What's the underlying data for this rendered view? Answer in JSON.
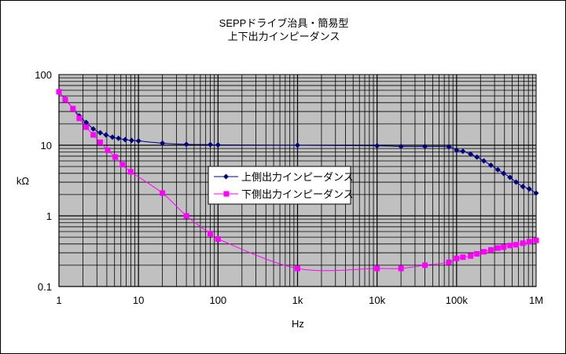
{
  "chart_data": {
    "type": "line",
    "title": "SEPPドライブ治具・簡易型",
    "subtitle": "上下出力インピーダンス",
    "xlabel": "Hz",
    "ylabel": "kΩ",
    "xscale": "log",
    "yscale": "log",
    "xlim": [
      1,
      1000000
    ],
    "ylim": [
      0.1,
      100
    ],
    "x_ticks": [
      {
        "value": 1,
        "label": "1"
      },
      {
        "value": 10,
        "label": "10"
      },
      {
        "value": 100,
        "label": "100"
      },
      {
        "value": 1000,
        "label": "1k"
      },
      {
        "value": 10000,
        "label": "10k"
      },
      {
        "value": 100000,
        "label": "100k"
      },
      {
        "value": 1000000,
        "label": "1M"
      }
    ],
    "y_ticks": [
      {
        "value": 0.1,
        "label": "0.1"
      },
      {
        "value": 1,
        "label": "1"
      },
      {
        "value": 10,
        "label": "10"
      },
      {
        "value": 100,
        "label": "100"
      }
    ],
    "grid": true,
    "legend_position": "center-right",
    "plot_background": "#c0c0c0",
    "series": [
      {
        "name": "上側出力インピーダンス",
        "color": "#000080",
        "marker": "diamond",
        "points": [
          [
            1,
            56
          ],
          [
            1.2,
            45
          ],
          [
            1.5,
            33
          ],
          [
            1.8,
            26
          ],
          [
            2.2,
            21
          ],
          [
            2.7,
            17
          ],
          [
            3.3,
            15
          ],
          [
            3.9,
            14
          ],
          [
            4.7,
            13
          ],
          [
            5.6,
            12.5
          ],
          [
            6.8,
            12
          ],
          [
            8.2,
            11.7
          ],
          [
            10,
            11.5
          ],
          [
            20,
            10.7
          ],
          [
            40,
            10.3
          ],
          [
            80,
            10.2
          ],
          [
            100,
            10.1
          ],
          [
            1000,
            10
          ],
          [
            10000,
            9.8
          ],
          [
            20000,
            9.6
          ],
          [
            40000,
            9.6
          ],
          [
            80000,
            9.5
          ],
          [
            100000,
            8.5
          ],
          [
            120000,
            8.2
          ],
          [
            150000,
            7.5
          ],
          [
            180000,
            6.8
          ],
          [
            220000,
            6
          ],
          [
            270000,
            5.2
          ],
          [
            330000,
            4.5
          ],
          [
            390000,
            4
          ],
          [
            470000,
            3.5
          ],
          [
            560000,
            3
          ],
          [
            680000,
            2.6
          ],
          [
            820000,
            2.4
          ],
          [
            1000000,
            2.1
          ]
        ]
      },
      {
        "name": "下側出力インピーダンス",
        "color": "#ff00ff",
        "marker": "square",
        "points": [
          [
            1,
            57
          ],
          [
            1.2,
            44
          ],
          [
            1.5,
            33
          ],
          [
            1.8,
            24
          ],
          [
            2.2,
            18
          ],
          [
            2.7,
            14
          ],
          [
            3.3,
            11
          ],
          [
            4.1,
            8.5
          ],
          [
            5.1,
            6.8
          ],
          [
            6.3,
            5.3
          ],
          [
            8,
            4.2
          ],
          [
            20,
            2.1
          ],
          [
            40,
            1
          ],
          [
            80,
            0.56
          ],
          [
            100,
            0.47
          ],
          [
            1000,
            0.18
          ],
          [
            10000,
            0.18
          ],
          [
            20000,
            0.18
          ],
          [
            40000,
            0.2
          ],
          [
            80000,
            0.22
          ],
          [
            100000,
            0.25
          ],
          [
            120000,
            0.26
          ],
          [
            150000,
            0.27
          ],
          [
            180000,
            0.29
          ],
          [
            220000,
            0.31
          ],
          [
            270000,
            0.33
          ],
          [
            330000,
            0.35
          ],
          [
            390000,
            0.36
          ],
          [
            470000,
            0.38
          ],
          [
            560000,
            0.39
          ],
          [
            680000,
            0.41
          ],
          [
            820000,
            0.43
          ],
          [
            1000000,
            0.45
          ]
        ]
      }
    ]
  }
}
